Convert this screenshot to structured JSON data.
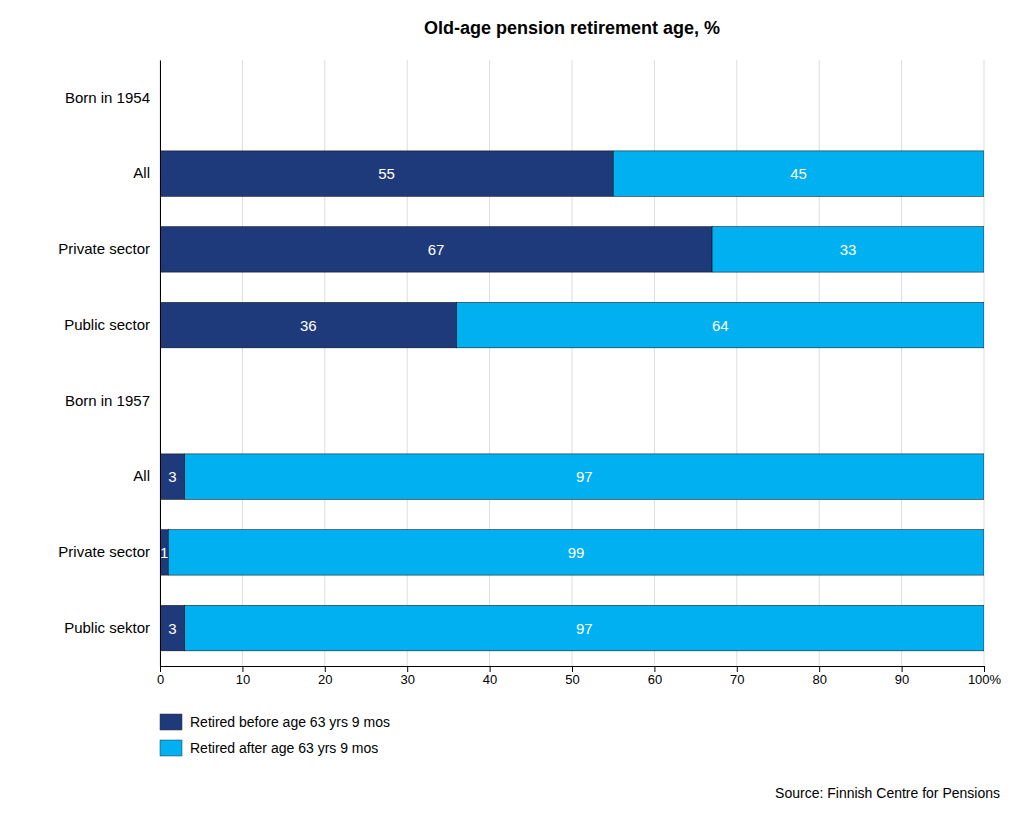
{
  "chart_data": {
    "type": "bar",
    "title": "Old-age pension retirement age, %",
    "orientation": "horizontal",
    "stacked": true,
    "data_labels": true,
    "grid": true,
    "legend": "bottom",
    "categories": [
      "Born in 1954",
      "All",
      "Private sector",
      "Public sector",
      "Born in 1957",
      "All",
      "Private sector",
      "Public sektor"
    ],
    "series": [
      {
        "name": "Retired before age 63 yrs 9 mos",
        "color": "#1F3A7A",
        "values": [
          null,
          55,
          67,
          36,
          null,
          3,
          1,
          3
        ]
      },
      {
        "name": "Retired after age 63 yrs 9 mos",
        "color": "#00B0F0",
        "values": [
          null,
          45,
          33,
          64,
          null,
          97,
          99,
          97
        ]
      }
    ],
    "xlim": [
      0,
      100
    ],
    "xticks": [
      0,
      10,
      20,
      30,
      40,
      50,
      60,
      70,
      80,
      90,
      {
        "value": 100,
        "label": "100%"
      }
    ],
    "annotations": [
      "Source: Finnish Centre for Pensions"
    ]
  }
}
